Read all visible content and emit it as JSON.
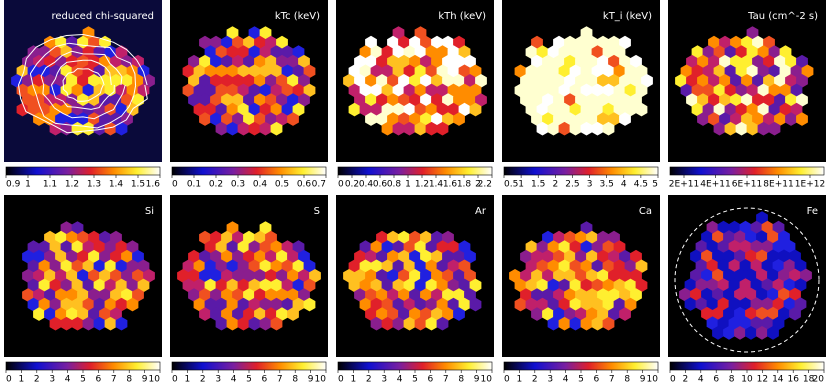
{
  "panels": [
    {
      "title": "reduced chi-squared",
      "ticks": [
        "0.9",
        "1",
        "1.1",
        "1.2",
        "1.3",
        "1.4",
        "1.5",
        "1.6"
      ]
    },
    {
      "title": "kTc (keV)",
      "ticks": [
        "0",
        "0.1",
        "0.2",
        "0.3",
        "0.4",
        "0.5",
        "0.6",
        "0.7"
      ]
    },
    {
      "title": "kTh (keV)",
      "ticks": [
        "0",
        "0.2",
        "0.4",
        "0.6",
        "0.8",
        "1",
        "1.2",
        "1.4",
        "1.6",
        "1.8",
        "2",
        "2.2"
      ]
    },
    {
      "title": "kT_i (keV)",
      "ticks": [
        "0.5",
        "1",
        "1.5",
        "2",
        "2.5",
        "3",
        "3.5",
        "4",
        "4.5",
        "5"
      ]
    },
    {
      "title": "Tau (cm^-2 s)",
      "ticks": [
        "2E+11",
        "4E+11",
        "6E+11",
        "8E+11",
        "1E+12"
      ]
    },
    {
      "title": "Si",
      "ticks": [
        "0",
        "1",
        "2",
        "3",
        "4",
        "5",
        "6",
        "7",
        "8",
        "9",
        "10"
      ]
    },
    {
      "title": "S",
      "ticks": [
        "0",
        "1",
        "2",
        "3",
        "4",
        "5",
        "6",
        "7",
        "8",
        "9",
        "10"
      ]
    },
    {
      "title": "Ar",
      "ticks": [
        "0",
        "1",
        "2",
        "3",
        "4",
        "5",
        "6",
        "7",
        "8",
        "9",
        "10"
      ]
    },
    {
      "title": "Ca",
      "ticks": [
        "0",
        "1",
        "2",
        "3",
        "4",
        "5",
        "6",
        "7",
        "8",
        "9",
        "10"
      ]
    },
    {
      "title": "Fe",
      "ticks": [
        "0",
        "2",
        "4",
        "6",
        "8",
        "10",
        "12",
        "14",
        "16",
        "18",
        "20"
      ]
    }
  ]
}
